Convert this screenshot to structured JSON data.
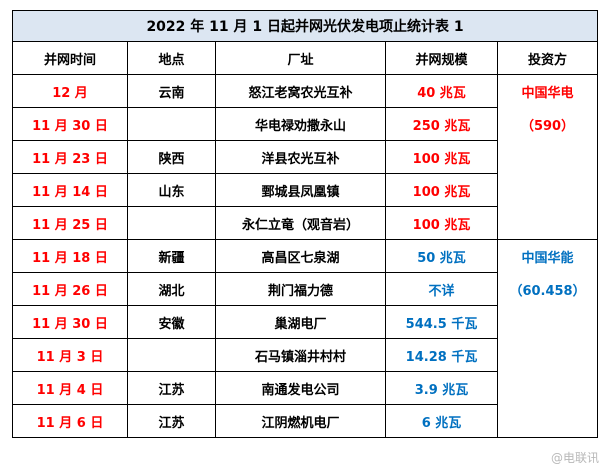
{
  "title": "2022 年 11 月 1 日起并网光伏发电项止统计表 1",
  "headers": {
    "date": "并网时间",
    "place": "地点",
    "site": "厂址",
    "scale": "并网规模",
    "investor": "投资方"
  },
  "rows": [
    {
      "date": "12 月",
      "place": "云南",
      "site": "怒江老窝农光互补",
      "scale": "40 兆瓦"
    },
    {
      "date": "11 月 30 日",
      "place": "",
      "site": "华电禄劝撒永山",
      "scale": "250 兆瓦"
    },
    {
      "date": "11 月 23 日",
      "place": "陕西",
      "site": "洋县农光互补",
      "scale": "100 兆瓦"
    },
    {
      "date": "11 月 14 日",
      "place": "山东",
      "site": "鄄城县凤凰镇",
      "scale": "100 兆瓦"
    },
    {
      "date": "11 月 25 日",
      "place": "",
      "site": "永仁立竜（观音岩）",
      "scale": "100 兆瓦"
    },
    {
      "date": "11 月 18 日",
      "place": "新疆",
      "site": "高昌区七泉湖",
      "scale": "50 兆瓦"
    },
    {
      "date": "11 月 26 日",
      "place": "湖北",
      "site": "荆门福力德",
      "scale": "不详"
    },
    {
      "date": "11 月 30 日",
      "place": "安徽",
      "site": "巢湖电厂",
      "scale": "544.5 千瓦"
    },
    {
      "date": "11 月 3 日",
      "place": "",
      "site": "石马镇淄井村村",
      "scale": "14.28 千瓦"
    },
    {
      "date": "11 月 4 日",
      "place": "江苏",
      "site": "南通发电公司",
      "scale": "3.9 兆瓦"
    },
    {
      "date": "11 月 6 日",
      "place": "江苏",
      "site": "江阴燃机电厂",
      "scale": "6 兆瓦"
    }
  ],
  "investors": {
    "huadian_name": "中国华电",
    "huadian_value": "（590）",
    "huaneng_name": "中国华能",
    "huaneng_value": "（60.458）"
  },
  "watermark": "@电联讯",
  "colors": {
    "red": "#ff0000",
    "blue": "#0070c0",
    "title_bg": "#dce6f2"
  }
}
